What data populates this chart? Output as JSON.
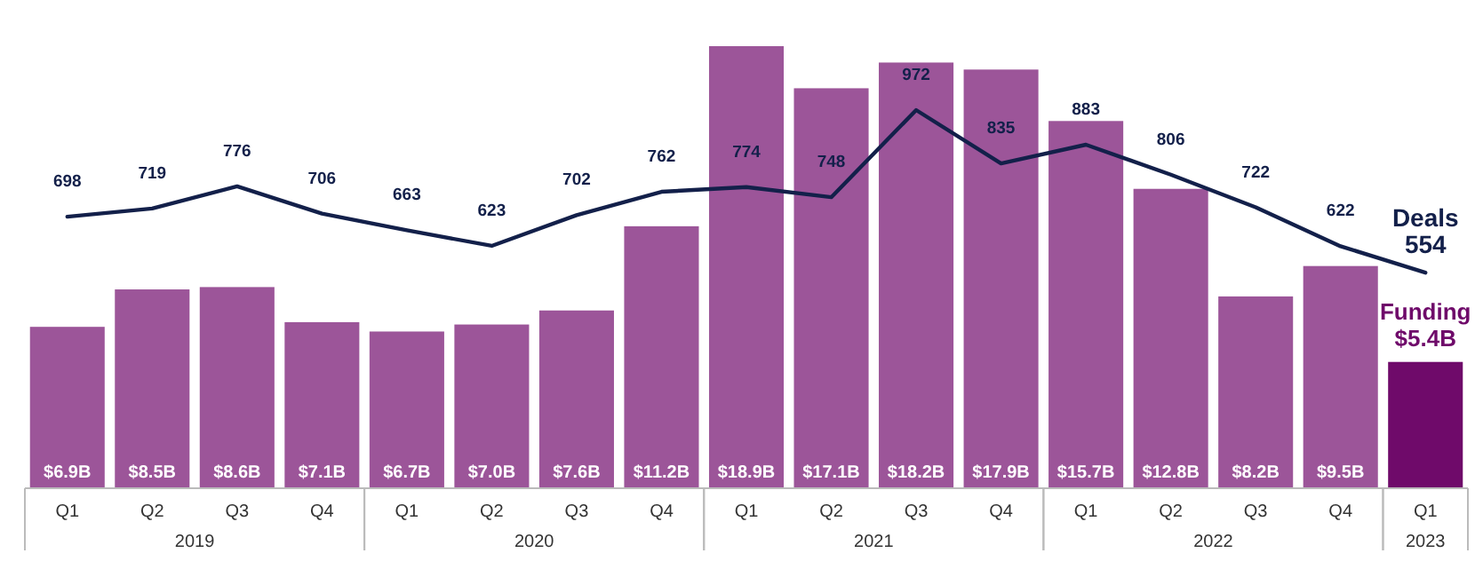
{
  "chart_data": {
    "type": "bar",
    "categories": [
      "Q1",
      "Q2",
      "Q3",
      "Q4",
      "Q1",
      "Q2",
      "Q3",
      "Q4",
      "Q1",
      "Q2",
      "Q3",
      "Q4",
      "Q1",
      "Q2",
      "Q3",
      "Q4",
      "Q1"
    ],
    "series": [
      {
        "name": "Funding",
        "axis": "y",
        "colors": [
          "#9c5599",
          "#9c5599",
          "#9c5599",
          "#9c5599",
          "#9c5599",
          "#9c5599",
          "#9c5599",
          "#9c5599",
          "#9c5599",
          "#9c5599",
          "#9c5599",
          "#9c5599",
          "#9c5599",
          "#9c5599",
          "#9c5599",
          "#9c5599",
          "#6f0a6a"
        ],
        "values": [
          6.9,
          8.5,
          8.6,
          7.1,
          6.7,
          7.0,
          7.6,
          11.2,
          18.9,
          17.1,
          18.2,
          17.9,
          15.7,
          12.8,
          8.2,
          9.5,
          5.4
        ],
        "value_labels": [
          "$6.9B",
          "$8.5B",
          "$8.6B",
          "$7.1B",
          "$6.7B",
          "$7.0B",
          "$7.6B",
          "$11.2B",
          "$18.9B",
          "$17.1B",
          "$18.2B",
          "$17.9B",
          "$15.7B",
          "$12.8B",
          "$8.2B",
          "$9.5B",
          "$5.4B"
        ]
      },
      {
        "name": "Deals",
        "type": "line",
        "axis": "y2",
        "color": "#13204a",
        "values": [
          698,
          719,
          776,
          706,
          663,
          623,
          702,
          762,
          774,
          748,
          972,
          835,
          883,
          806,
          722,
          622,
          554
        ]
      }
    ],
    "tick_labels": "x",
    "data_labels": true,
    "marker": "none",
    "line_style": "solid",
    "grid": false,
    "legend": false,
    "annotations": [
      "2019",
      "2020",
      "2021",
      "2022",
      "2023"
    ]
  }
}
